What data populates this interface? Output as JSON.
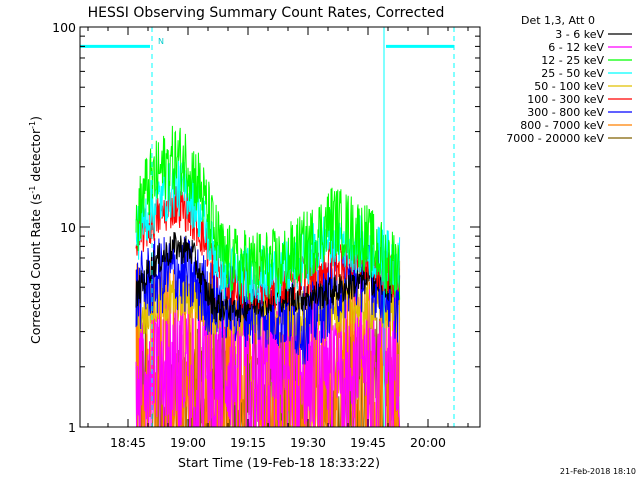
{
  "chart_data": {
    "type": "line",
    "title": "HESSI Observing Summary Count Rates, Corrected",
    "xlabel": "Start Time (19-Feb-18 18:33:22)",
    "ylabel_main": "Corrected Count Rate (s",
    "ylabel_sup1": "-1",
    "ylabel_mid": " detector",
    "ylabel_sup2": "-1",
    "ylabel_end": ")",
    "yscale": "log",
    "ylim": [
      1,
      100
    ],
    "xlim_minutes": [
      0,
      100
    ],
    "x_ticks": [
      {
        "minute": 12,
        "label": "18:45"
      },
      {
        "minute": 27,
        "label": "19:00"
      },
      {
        "minute": 42,
        "label": "19:15"
      },
      {
        "minute": 57,
        "label": "19:30"
      },
      {
        "minute": 72,
        "label": "19:45"
      },
      {
        "minute": 87,
        "label": "20:00"
      }
    ],
    "y_ticks": [
      {
        "value": 1,
        "label": "1"
      },
      {
        "value": 10,
        "label": "10"
      },
      {
        "value": 100,
        "label": "100"
      }
    ],
    "legend_header": "Det 1,3, Att 0",
    "annotation_n": "N",
    "timestamp": "21-Feb-2018 18:10",
    "vertical_markers": [
      {
        "minute": 0,
        "color": "#00ffff",
        "style": "solid"
      },
      {
        "minute": 18,
        "color": "#00ffff",
        "style": "dashed"
      },
      {
        "minute": 76,
        "color": "#00ffff",
        "style": "solid"
      },
      {
        "minute": 93.5,
        "color": "#00ffff",
        "style": "dashed"
      }
    ],
    "coverage_bars": [
      {
        "start": 0,
        "end": 17.5,
        "value": 80
      },
      {
        "start": 76.5,
        "end": 93.5,
        "value": 80
      }
    ],
    "series": [
      {
        "name": "3 - 6 keV",
        "color": "#000000",
        "noise": 0.08,
        "points": [
          [
            14,
            4.5
          ],
          [
            18,
            6.5
          ],
          [
            24,
            8
          ],
          [
            28,
            7.5
          ],
          [
            31,
            5
          ],
          [
            34,
            4
          ],
          [
            40,
            4
          ],
          [
            50,
            4.5
          ],
          [
            58,
            4.5
          ],
          [
            66,
            5
          ],
          [
            72,
            5.5
          ],
          [
            78,
            5
          ]
        ]
      },
      {
        "name": "6 - 12 keV",
        "color": "#ff00ff",
        "noise": 0.35,
        "points": [
          [
            14,
            2.2
          ],
          [
            20,
            2.3
          ],
          [
            28,
            2.2
          ],
          [
            40,
            2
          ],
          [
            55,
            2.2
          ],
          [
            65,
            2.5
          ],
          [
            72,
            2.8
          ],
          [
            80,
            2.5
          ]
        ]
      },
      {
        "name": "12 - 25 keV",
        "color": "#00ff00",
        "noise": 0.18,
        "points": [
          [
            14,
            10
          ],
          [
            16,
            15
          ],
          [
            20,
            19
          ],
          [
            24,
            22
          ],
          [
            27,
            21
          ],
          [
            30,
            16
          ],
          [
            33,
            10
          ],
          [
            36,
            7
          ],
          [
            40,
            6.5
          ],
          [
            50,
            6.5
          ],
          [
            58,
            8.5
          ],
          [
            63,
            11
          ],
          [
            67,
            10
          ],
          [
            71,
            9
          ],
          [
            76,
            7
          ],
          [
            80,
            6.5
          ]
        ]
      },
      {
        "name": "25 - 50 keV",
        "color": "#00ffff",
        "noise": 0.15,
        "points": [
          [
            14,
            9
          ],
          [
            16,
            11
          ],
          [
            20,
            14
          ],
          [
            24,
            16
          ],
          [
            27,
            15
          ],
          [
            30,
            12
          ],
          [
            33,
            8
          ],
          [
            36,
            6
          ],
          [
            40,
            5.8
          ],
          [
            50,
            5.8
          ],
          [
            58,
            7.5
          ],
          [
            63,
            9
          ],
          [
            67,
            8.5
          ],
          [
            71,
            8
          ],
          [
            76,
            7
          ],
          [
            80,
            6.5
          ]
        ]
      },
      {
        "name": "50 - 100 keV",
        "color": "#e0c000",
        "noise": 0.12,
        "points": [
          [
            14,
            3.5
          ],
          [
            20,
            4.2
          ],
          [
            28,
            4.5
          ],
          [
            32,
            3.8
          ],
          [
            40,
            3.6
          ],
          [
            50,
            3.6
          ],
          [
            60,
            3.8
          ],
          [
            70,
            4
          ],
          [
            80,
            3.8
          ]
        ]
      },
      {
        "name": "100 - 300 keV",
        "color": "#ff0000",
        "noise": 0.11,
        "points": [
          [
            14,
            8
          ],
          [
            16,
            9.5
          ],
          [
            20,
            11.5
          ],
          [
            24,
            13
          ],
          [
            27,
            12
          ],
          [
            30,
            9.5
          ],
          [
            33,
            7
          ],
          [
            36,
            5.5
          ],
          [
            40,
            5
          ],
          [
            50,
            5
          ],
          [
            58,
            6
          ],
          [
            63,
            6.8
          ],
          [
            67,
            7
          ],
          [
            71,
            7
          ],
          [
            76,
            6
          ],
          [
            80,
            5.5
          ]
        ]
      },
      {
        "name": "300 - 800 keV",
        "color": "#0000ff",
        "noise": 0.2,
        "points": [
          [
            14,
            4.5
          ],
          [
            18,
            5.5
          ],
          [
            24,
            6
          ],
          [
            28,
            5.5
          ],
          [
            32,
            4.5
          ],
          [
            40,
            4
          ],
          [
            52,
            3.8
          ],
          [
            56,
            3.2
          ],
          [
            60,
            4
          ],
          [
            64,
            5
          ],
          [
            68,
            5.8
          ],
          [
            72,
            6
          ],
          [
            76,
            5
          ],
          [
            80,
            4
          ]
        ]
      },
      {
        "name": "800 - 7000 keV",
        "color": "#ff8000",
        "noise": 0.55,
        "points": [
          [
            14,
            2.2
          ],
          [
            20,
            2.2
          ],
          [
            30,
            2
          ],
          [
            40,
            1.9
          ],
          [
            50,
            1.9
          ],
          [
            60,
            2
          ],
          [
            70,
            2
          ],
          [
            80,
            2
          ]
        ]
      },
      {
        "name": "7000 - 20000 keV",
        "color": "#806000",
        "noise": 0.4,
        "points": [
          [
            14,
            1.5
          ],
          [
            20,
            1.5
          ],
          [
            40,
            1.4
          ],
          [
            60,
            1.5
          ],
          [
            80,
            1.5
          ]
        ]
      }
    ]
  }
}
